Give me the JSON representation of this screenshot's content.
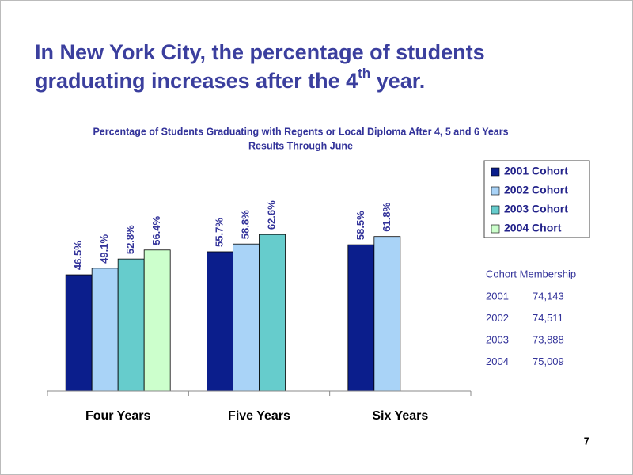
{
  "slide": {
    "title_line1": "In New York City, the percentage of students",
    "title_line2": "graduating increases after the 4",
    "title_sup": "th",
    "title_end": " year.",
    "page_number": "7"
  },
  "chart_data": {
    "type": "bar",
    "title": "Percentage of Students Graduating with Regents or Local Diploma After 4, 5 and 6 Years",
    "subtitle": "Results Through June",
    "categories": [
      "Four Years",
      "Five Years",
      "Six Years"
    ],
    "series": [
      {
        "name": "2001 Cohort",
        "color": "#0b1e8c",
        "values": [
          46.5,
          55.7,
          58.5
        ],
        "value_labels": [
          "46.5%",
          "55.7%",
          "58.5%"
        ]
      },
      {
        "name": "2002 Cohort",
        "color": "#a9d3f7",
        "values": [
          49.1,
          58.8,
          61.8
        ],
        "value_labels": [
          "49.1%",
          "58.8%",
          "61.8%"
        ]
      },
      {
        "name": "2003 Cohort",
        "color": "#66cccc",
        "values": [
          52.8,
          62.6,
          null
        ],
        "value_labels": [
          "52.8%",
          "62.6%",
          null
        ]
      },
      {
        "name": "2004 Chort",
        "color": "#ccffcc",
        "values": [
          56.4,
          null,
          null
        ],
        "value_labels": [
          "56.4%",
          null,
          null
        ]
      }
    ],
    "ylim": [
      0,
      100
    ],
    "legend": "right"
  },
  "membership": {
    "title": "Cohort Membership",
    "rows": [
      [
        "2001",
        "74,143"
      ],
      [
        "2002",
        "74,511"
      ],
      [
        "2003",
        "73,888"
      ],
      [
        "2004",
        "75,009"
      ]
    ]
  }
}
